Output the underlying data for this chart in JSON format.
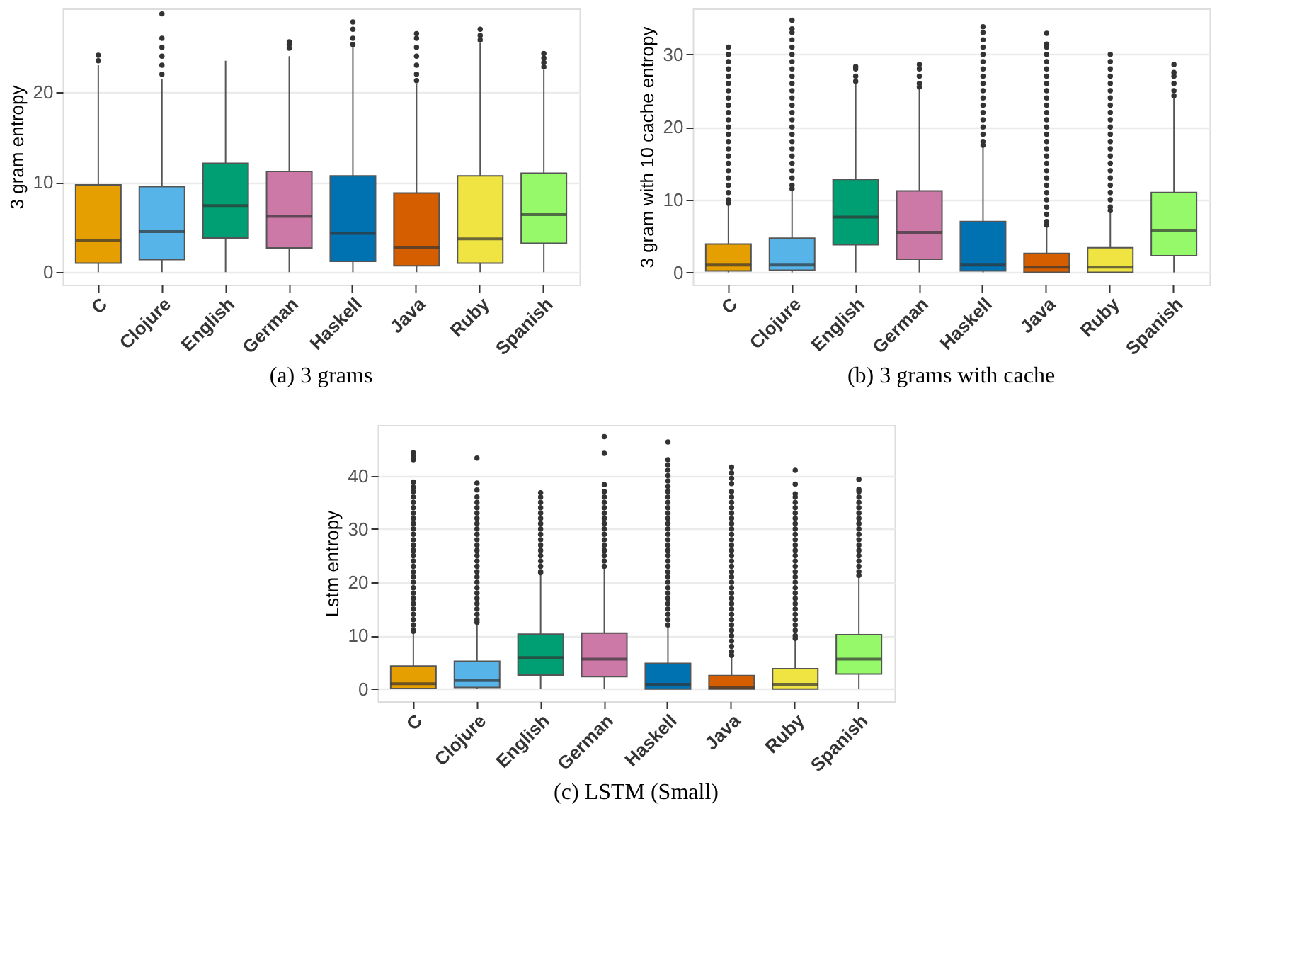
{
  "chart_data": [
    {
      "type": "box",
      "title": "(a) 3 grams",
      "ylabel": "3 gram entropy",
      "categories": [
        "C",
        "Clojure",
        "English",
        "German",
        "Haskell",
        "Java",
        "Ruby",
        "Spanish"
      ],
      "colors": [
        "#e69f00",
        "#56b4e9",
        "#009e73",
        "#cc79a7",
        "#0072b2",
        "#d55e00",
        "#f0e442",
        "#95f96a"
      ],
      "ylim": [
        -1.4,
        29.3
      ],
      "yticks": [
        0,
        10,
        20
      ],
      "grid": "y",
      "boxes": [
        {
          "low": 0,
          "q1": 1.0,
          "median": 3.5,
          "q3": 9.7,
          "high": 23,
          "outliers": [
            23.5,
            24.1
          ]
        },
        {
          "low": 0,
          "q1": 1.4,
          "median": 4.5,
          "q3": 9.5,
          "high": 21.5,
          "outliers": [
            22,
            23,
            24,
            25,
            26,
            28.7
          ]
        },
        {
          "low": 0,
          "q1": 3.8,
          "median": 7.4,
          "q3": 12.1,
          "high": 23.5
        },
        {
          "low": 0,
          "q1": 2.7,
          "median": 6.2,
          "q3": 11.2,
          "high": 24,
          "outliers": [
            24.9,
            25.3,
            25.6
          ]
        },
        {
          "low": 0,
          "q1": 1.2,
          "median": 4.3,
          "q3": 10.7,
          "high": 25,
          "outliers": [
            25.3,
            26,
            27,
            27.8
          ]
        },
        {
          "low": 0,
          "q1": 0.7,
          "median": 2.7,
          "q3": 8.8,
          "high": 21,
          "outliers": [
            21.3,
            22,
            23,
            24,
            25,
            26,
            26.5
          ]
        },
        {
          "low": 0,
          "q1": 1.0,
          "median": 3.7,
          "q3": 10.7,
          "high": 25.5,
          "outliers": [
            25.8,
            26.3,
            27
          ]
        },
        {
          "low": 0,
          "q1": 3.2,
          "median": 6.4,
          "q3": 11.0,
          "high": 22.5,
          "outliers": [
            22.8,
            23.3,
            23.8,
            24.3
          ]
        }
      ]
    },
    {
      "type": "box",
      "title": "(b) 3 grams with cache",
      "ylabel": "3 gram with 10 cache entropy",
      "categories": [
        "C",
        "Clojure",
        "English",
        "German",
        "Haskell",
        "Java",
        "Ruby",
        "Spanish"
      ],
      "colors": [
        "#e69f00",
        "#56b4e9",
        "#009e73",
        "#cc79a7",
        "#0072b2",
        "#d55e00",
        "#f0e442",
        "#95f96a"
      ],
      "ylim": [
        -1.7,
        36.3
      ],
      "yticks": [
        0,
        10,
        20,
        30
      ],
      "grid": "y",
      "boxes": [
        {
          "low": 0,
          "q1": 0.2,
          "median": 1.0,
          "q3": 3.9,
          "high": 9.2,
          "outliers": [
            9.5,
            10,
            11,
            12,
            13,
            14,
            15,
            16,
            17,
            18,
            19,
            20,
            21,
            22,
            23,
            24,
            25,
            26,
            27,
            28,
            29,
            30,
            31
          ]
        },
        {
          "low": 0,
          "q1": 0.3,
          "median": 1.0,
          "q3": 4.7,
          "high": 11.2,
          "outliers": [
            11.5,
            12,
            13,
            14,
            15,
            16,
            17,
            18,
            19,
            20,
            21,
            22,
            23,
            24,
            25,
            26,
            27,
            28,
            29,
            30,
            31,
            32,
            33,
            33.5,
            34.7
          ]
        },
        {
          "low": 0,
          "q1": 3.8,
          "median": 7.6,
          "q3": 12.8,
          "high": 26,
          "outliers": [
            26.3,
            27,
            28,
            28.3
          ]
        },
        {
          "low": 0,
          "q1": 1.8,
          "median": 5.5,
          "q3": 11.2,
          "high": 25.2,
          "outliers": [
            25.5,
            26,
            27,
            28,
            28.6
          ]
        },
        {
          "low": 0,
          "q1": 0.2,
          "median": 1.0,
          "q3": 7.0,
          "high": 17.2,
          "outliers": [
            17.5,
            18,
            19,
            20,
            21,
            22,
            23,
            24,
            25,
            26,
            27,
            28,
            29,
            30,
            31,
            32,
            33,
            33.8
          ]
        },
        {
          "low": 0,
          "q1": 0,
          "median": 0.7,
          "q3": 2.6,
          "high": 6.3,
          "outliers": [
            6.5,
            7,
            8,
            9,
            10,
            11,
            12,
            13,
            14,
            15,
            16,
            17,
            18,
            19,
            20,
            21,
            22,
            23,
            24,
            25,
            26,
            27,
            28,
            29,
            30,
            31,
            31.4,
            32.9
          ]
        },
        {
          "low": 0,
          "q1": 0,
          "median": 0.7,
          "q3": 3.4,
          "high": 8.2,
          "outliers": [
            8.5,
            9,
            10,
            11,
            12,
            13,
            14,
            15,
            16,
            17,
            18,
            19,
            20,
            21,
            22,
            23,
            24,
            25,
            26,
            27,
            28,
            29,
            30
          ]
        },
        {
          "low": 0,
          "q1": 2.3,
          "median": 5.7,
          "q3": 11.0,
          "high": 24,
          "outliers": [
            24.3,
            25,
            26,
            27,
            27.5,
            28.6
          ]
        }
      ]
    },
    {
      "type": "box",
      "title": "(c) LSTM (Small)",
      "ylabel": "Lstm entropy",
      "categories": [
        "C",
        "Clojure",
        "English",
        "German",
        "Haskell",
        "Java",
        "Ruby",
        "Spanish"
      ],
      "colors": [
        "#e69f00",
        "#56b4e9",
        "#009e73",
        "#cc79a7",
        "#0072b2",
        "#d55e00",
        "#f0e442",
        "#95f96a"
      ],
      "ylim": [
        -2.3,
        49.5
      ],
      "yticks": [
        0,
        10,
        20,
        30,
        40
      ],
      "grid": "y",
      "boxes": [
        {
          "low": 0,
          "q1": 0.1,
          "median": 1.0,
          "q3": 4.3,
          "high": 10.5,
          "outliers": [
            10.8,
            11,
            12,
            13,
            14,
            15,
            16,
            17,
            18,
            19,
            20,
            21,
            22,
            23,
            24,
            25,
            26,
            27,
            28,
            29,
            30,
            31,
            32,
            33,
            34,
            35,
            36,
            37,
            37.8,
            38.8,
            43,
            43.6,
            44.3
          ]
        },
        {
          "low": 0,
          "q1": 0.3,
          "median": 1.6,
          "q3": 5.2,
          "high": 12.3,
          "outliers": [
            12.5,
            13,
            14,
            15,
            16,
            17,
            18,
            19,
            20,
            21,
            22,
            23,
            24,
            25,
            26,
            27,
            28,
            29,
            30,
            31,
            32,
            33,
            34,
            35,
            36,
            37.3,
            38.6,
            43.3
          ]
        },
        {
          "low": 0,
          "q1": 2.6,
          "median": 5.9,
          "q3": 10.3,
          "high": 21.5,
          "outliers": [
            21.8,
            22,
            23,
            24,
            25,
            26,
            27,
            28,
            29,
            30,
            31,
            32,
            33,
            34,
            35,
            36,
            36.8
          ]
        },
        {
          "low": 0,
          "q1": 2.3,
          "median": 5.6,
          "q3": 10.5,
          "high": 22.7,
          "outliers": [
            23,
            24,
            25,
            26,
            27,
            28,
            29,
            30,
            31,
            32,
            33,
            34,
            35,
            36,
            37,
            38.3,
            44.2,
            47.3
          ]
        },
        {
          "low": 0,
          "q1": 0,
          "median": 0.9,
          "q3": 4.8,
          "high": 11.8,
          "outliers": [
            12,
            13,
            14,
            15,
            16,
            17,
            18,
            19,
            20,
            21,
            22,
            23,
            24,
            25,
            26,
            27,
            28,
            29,
            30,
            31,
            32,
            33,
            34,
            35,
            36,
            37,
            38,
            39,
            40,
            41,
            42,
            43,
            46.3
          ]
        },
        {
          "low": 0,
          "q1": 0,
          "median": 0.3,
          "q3": 2.5,
          "high": 6,
          "outliers": [
            6.3,
            7,
            8,
            9,
            10,
            11,
            12,
            13,
            14,
            15,
            16,
            17,
            18,
            19,
            20,
            21,
            22,
            23,
            24,
            25,
            26,
            27,
            28,
            29,
            30,
            31,
            32,
            33,
            34,
            35,
            36,
            37,
            38.5,
            39.5,
            40.5,
            41.6
          ]
        },
        {
          "low": 0,
          "q1": 0,
          "median": 0.9,
          "q3": 3.8,
          "high": 9.3,
          "outliers": [
            9.5,
            10,
            11,
            12,
            13,
            14,
            15,
            16,
            17,
            18,
            19,
            20,
            21,
            22,
            23,
            24,
            25,
            26,
            27,
            28,
            29,
            30,
            31,
            32,
            33,
            34,
            35,
            36,
            36.6,
            38.4,
            41
          ]
        },
        {
          "low": 0,
          "q1": 2.8,
          "median": 5.6,
          "q3": 10.2,
          "high": 21,
          "outliers": [
            21.3,
            22,
            23,
            24,
            25,
            26,
            27,
            28,
            29,
            30,
            31,
            32,
            33,
            34,
            35,
            36,
            37,
            37.4,
            39.3
          ]
        }
      ]
    }
  ]
}
